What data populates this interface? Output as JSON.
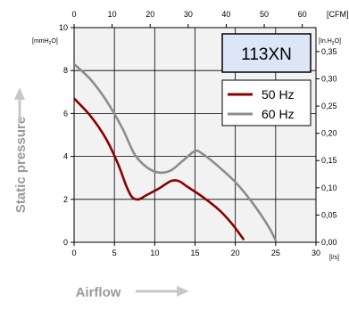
{
  "chart_data": {
    "type": "line",
    "title": "",
    "model_label": "113XN",
    "xlabel": "Airflow",
    "ylabel": "Static pressure",
    "x_bottom": {
      "unit": "[l/s]",
      "range": [
        0,
        30
      ],
      "ticks": [
        "0",
        "5",
        "10",
        "15",
        "20",
        "25",
        "30"
      ]
    },
    "x_top": {
      "unit": "[CFM]",
      "range": [
        0,
        63.6
      ],
      "ticks": [
        "0",
        "10",
        "20",
        "30",
        "40",
        "50",
        "60"
      ]
    },
    "y_left": {
      "unit": "[mmH2O]",
      "range": [
        0,
        10
      ],
      "ticks": [
        "0",
        "2",
        "4",
        "6",
        "8",
        "10"
      ]
    },
    "y_right": {
      "unit": "[In.H2O]",
      "range": [
        0,
        0.394
      ],
      "ticks": [
        "0,00",
        "0,05",
        "0,10",
        "0,15",
        "0,20",
        "0,25",
        "0,30",
        "0,35"
      ]
    },
    "grid": true,
    "legend_position": "top-right",
    "series": [
      {
        "name": "50 Hz",
        "color": "#8b0000",
        "points": [
          [
            0,
            6.7
          ],
          [
            2,
            5.9
          ],
          [
            4,
            4.8
          ],
          [
            5.5,
            3.6
          ],
          [
            6.5,
            2.6
          ],
          [
            7.2,
            2.1
          ],
          [
            8,
            2.0
          ],
          [
            9,
            2.2
          ],
          [
            10.5,
            2.5
          ],
          [
            12,
            2.85
          ],
          [
            13,
            2.85
          ],
          [
            14,
            2.6
          ],
          [
            16,
            2.1
          ],
          [
            18,
            1.5
          ],
          [
            19.5,
            0.9
          ],
          [
            21,
            0.15
          ]
        ]
      },
      {
        "name": "60 Hz",
        "color": "#8c8c8c",
        "points": [
          [
            0,
            8.3
          ],
          [
            2,
            7.6
          ],
          [
            4,
            6.6
          ],
          [
            6,
            5.3
          ],
          [
            7.5,
            4.1
          ],
          [
            9,
            3.5
          ],
          [
            10.5,
            3.25
          ],
          [
            12,
            3.35
          ],
          [
            13.5,
            3.8
          ],
          [
            15,
            4.25
          ],
          [
            16,
            4.1
          ],
          [
            18,
            3.5
          ],
          [
            20,
            2.8
          ],
          [
            22,
            1.9
          ],
          [
            24,
            0.8
          ],
          [
            25,
            0.1
          ]
        ]
      }
    ]
  }
}
